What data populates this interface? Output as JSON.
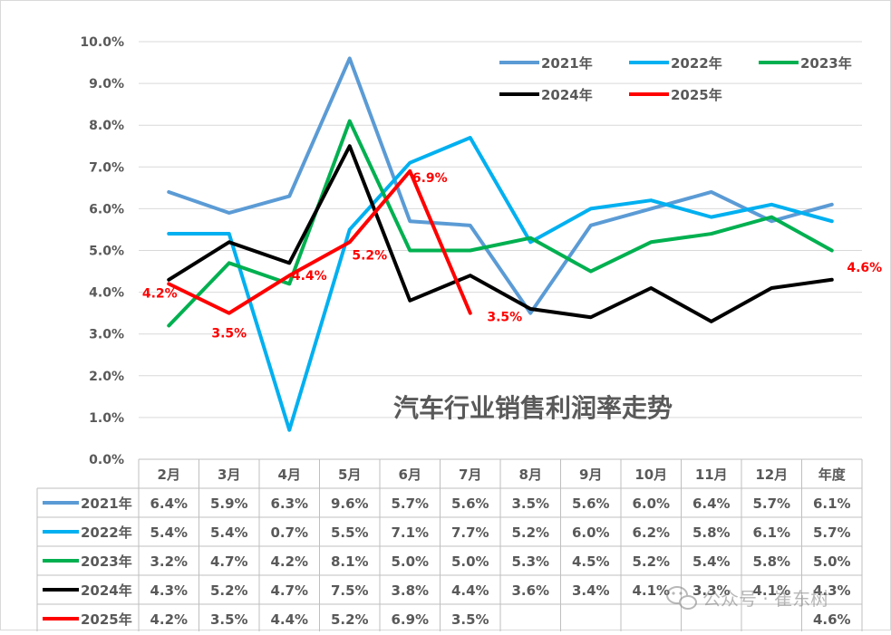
{
  "chart_data": {
    "type": "line",
    "title": "汽车行业销售利润率走势",
    "categories": [
      "2月",
      "3月",
      "4月",
      "5月",
      "6月",
      "7月",
      "8月",
      "9月",
      "10月",
      "11月",
      "12月",
      "年度"
    ],
    "y_ticks": [
      "0.0%",
      "1.0%",
      "2.0%",
      "3.0%",
      "4.0%",
      "5.0%",
      "6.0%",
      "7.0%",
      "8.0%",
      "9.0%",
      "10.0%"
    ],
    "ylim": [
      0,
      10
    ],
    "grid": true,
    "legend_position": "top-right",
    "series": [
      {
        "name": "2021年",
        "color": "#5B9BD5",
        "values": [
          6.4,
          5.9,
          6.3,
          9.6,
          5.7,
          5.6,
          3.5,
          5.6,
          6.0,
          6.4,
          5.7,
          6.1
        ],
        "labels": [
          "6.4%",
          "5.9%",
          "6.3%",
          "9.6%",
          "5.7%",
          "5.6%",
          "3.5%",
          "5.6%",
          "6.0%",
          "6.4%",
          "5.7%",
          "6.1%"
        ]
      },
      {
        "name": "2022年",
        "color": "#00B0F0",
        "values": [
          5.4,
          5.4,
          0.7,
          5.5,
          7.1,
          7.7,
          5.2,
          6.0,
          6.2,
          5.8,
          6.1,
          5.7
        ],
        "labels": [
          "5.4%",
          "5.4%",
          "0.7%",
          "5.5%",
          "7.1%",
          "7.7%",
          "5.2%",
          "6.0%",
          "6.2%",
          "5.8%",
          "6.1%",
          "5.7%"
        ]
      },
      {
        "name": "2023年",
        "color": "#00B050",
        "values": [
          3.2,
          4.7,
          4.2,
          8.1,
          5.0,
          5.0,
          5.3,
          4.5,
          5.2,
          5.4,
          5.8,
          5.0
        ],
        "labels": [
          "3.2%",
          "4.7%",
          "4.2%",
          "8.1%",
          "5.0%",
          "5.0%",
          "5.3%",
          "4.5%",
          "5.2%",
          "5.4%",
          "5.8%",
          "5.0%"
        ]
      },
      {
        "name": "2024年",
        "color": "#000000",
        "values": [
          4.3,
          5.2,
          4.7,
          7.5,
          3.8,
          4.4,
          3.6,
          3.4,
          4.1,
          3.3,
          4.1,
          4.3
        ],
        "labels": [
          "4.3%",
          "5.2%",
          "4.7%",
          "7.5%",
          "3.8%",
          "4.4%",
          "3.6%",
          "3.4%",
          "4.1%",
          "3.3%",
          "4.1%",
          "4.3%"
        ]
      },
      {
        "name": "2025年",
        "color": "#FF0000",
        "values": [
          4.2,
          3.5,
          4.4,
          5.2,
          6.9,
          3.5,
          null,
          null,
          null,
          null,
          null,
          4.6
        ],
        "labels": [
          "4.2%",
          "3.5%",
          "4.4%",
          "5.2%",
          "6.9%",
          "3.5%",
          "",
          "",
          "",
          "",
          "",
          "4.6%"
        ],
        "data_labels": [
          "4.2%",
          "3.5%",
          "4.4%",
          "5.2%",
          "6.9%",
          "3.5%",
          "",
          "",
          "",
          "",
          "",
          "4.6%"
        ]
      }
    ]
  },
  "watermark": "公众号 · 崔东树"
}
